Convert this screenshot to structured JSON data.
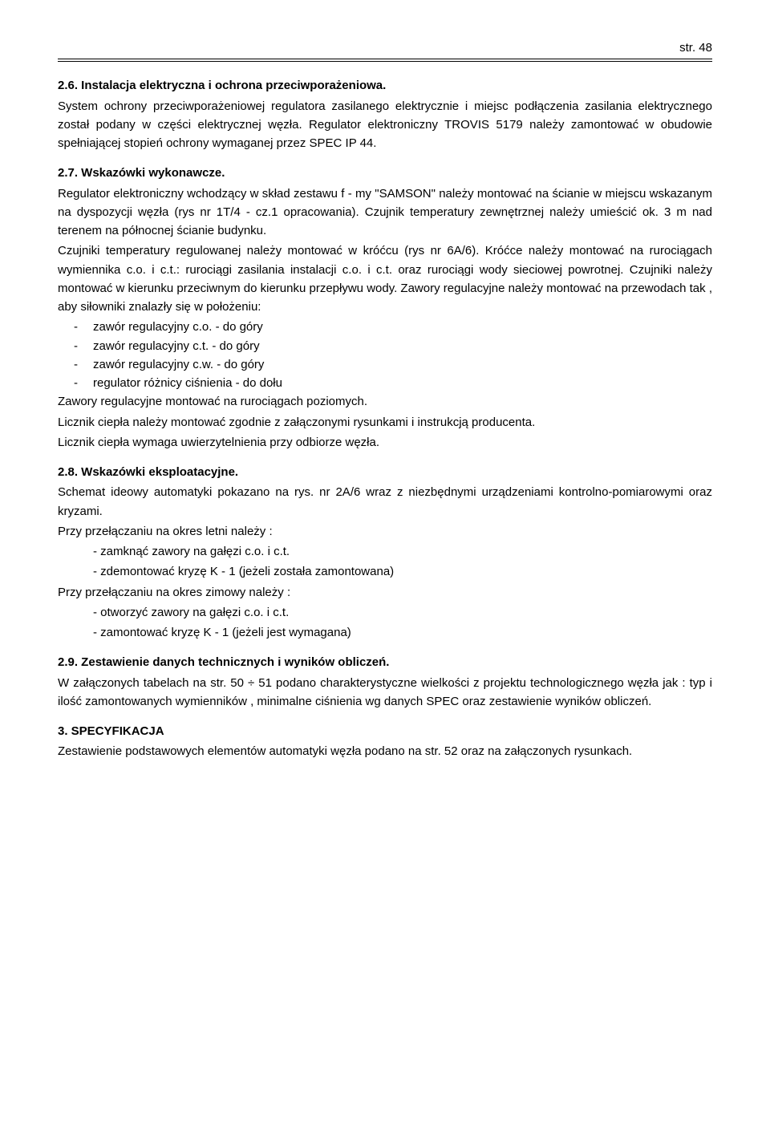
{
  "header": {
    "page_label": "str. 48"
  },
  "s26": {
    "title": "2.6. Instalacja elektryczna i ochrona przeciwporażeniowa.",
    "p1": "System ochrony przeciwporażeniowej regulatora zasilanego elektrycznie i miejsc podłączenia zasilania elektrycznego został podany w części elektrycznej węzła. Regulator elektroniczny TROVIS 5179 należy zamontować w  obudowie spełniającej stopień ochrony wymaganej przez SPEC  IP 44."
  },
  "s27": {
    "title": "2.7. Wskazówki wykonawcze.",
    "p1": "Regulator elektroniczny wchodzący w skład zestawu  f - my  \"SAMSON\"  należy montować na ścianie  w miejscu  wskazanym  na  dyspozycji  węzła (rys nr 1T/4 - cz.1 opracowania). Czujnik  temperatury  zewnętrznej należy umieścić ok. 3 m  nad  terenem  na północnej ścianie budynku.",
    "p2": "Czujniki temperatury regulowanej należy montować w  króćcu (rys nr 6A/6). Króćce należy montować na rurociągach wymiennika  c.o. i c.t.: rurociągi zasilania instalacji  c.o. i c.t.  oraz rurociągi wody  sieciowej powrotnej. Czujniki należy  montować  w  kierunku  przeciwnym  do  kierunku  przepływu  wody. Zawory regulacyjne  należy  montować  na przewodach  tak , aby siłowniki znalazły się w położeniu:",
    "items": [
      "zawór  regulacyjny  c.o.   -  do  góry",
      "zawór  regulacyjny  c.t.   -  do  góry",
      "zawór  regulacyjny  c.w. -  do  góry",
      "regulator różnicy ciśnienia  - do dołu"
    ],
    "p3": "Zawory  regulacyjne  montować  na  rurociągach  poziomych.",
    "p4": "Licznik ciepła  należy montować  zgodnie  z  załączonymi  rysunkami  i  instrukcją producenta.",
    "p5": "Licznik ciepła wymaga uwierzytelnienia przy odbiorze węzła."
  },
  "s28": {
    "title": "2.8. Wskazówki eksploatacyjne.",
    "p1": "Schemat  ideowy  automatyki  pokazano  na  rys. nr 2A/6  wraz  z  niezbędnymi urządzeniami kontrolno-pomiarowymi oraz kryzami.",
    "p2": "Przy  przełączaniu na okres letni należy :",
    "items1": [
      "- zamknąć zawory na gałęzi c.o. i c.t.",
      "- zdemontować kryzę  K - 1  (jeżeli została zamontowana)"
    ],
    "p3": "Przy  przełączaniu na  okres zimowy należy :",
    "items2": [
      "- otworzyć zawory na gałęzi c.o. i c.t.",
      "- zamontować kryzę  K - 1  (jeżeli jest  wymagana)"
    ]
  },
  "s29": {
    "title": "2.9. Zestawienie danych technicznych i wyników obliczeń.",
    "p1": "W załączonych   tabelach na  str. 50 ÷ 51  podano  charakterystyczne  wielkości  z projektu technologicznego węzła jak : typ  i  ilość zamontowanych wymienników , minimalne  ciśnienia  wg  danych SPEC  oraz  zestawienie  wyników  obliczeń."
  },
  "s3": {
    "title": "3. SPECYFIKACJA",
    "p1": "Zestawienie podstawowych elementów automatyki węzła podano na  str. 52  oraz na  załączonych rysunkach."
  }
}
